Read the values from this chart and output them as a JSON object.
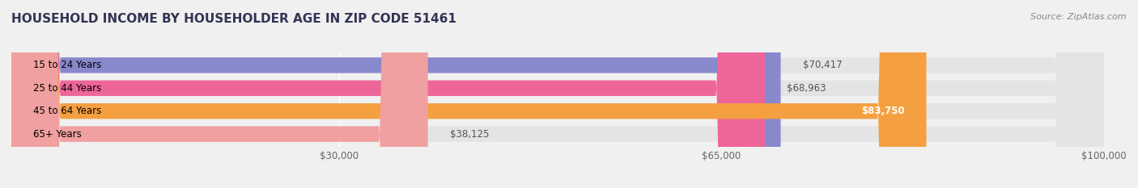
{
  "title": "HOUSEHOLD INCOME BY HOUSEHOLDER AGE IN ZIP CODE 51461",
  "source": "Source: ZipAtlas.com",
  "categories": [
    "15 to 24 Years",
    "25 to 44 Years",
    "45 to 64 Years",
    "65+ Years"
  ],
  "values": [
    70417,
    68963,
    83750,
    38125
  ],
  "bar_colors": [
    "#8888cc",
    "#ee6699",
    "#f5a040",
    "#f0a0a0"
  ],
  "value_labels": [
    "$70,417",
    "$68,963",
    "$83,750",
    "$38,125"
  ],
  "value_label_inside": [
    false,
    false,
    true,
    false
  ],
  "value_label_colors_inside": "#ffffff",
  "value_label_colors_outside": "#555555",
  "xlim": [
    0,
    100000
  ],
  "xticks": [
    30000,
    65000,
    100000
  ],
  "xtick_labels": [
    "$30,000",
    "$65,000",
    "$100,000"
  ],
  "background_color": "#f0f0f0",
  "bar_bg_color": "#e4e4e4",
  "title_fontsize": 11,
  "source_fontsize": 8,
  "label_fontsize": 8.5,
  "tick_fontsize": 8.5,
  "bar_height": 0.68,
  "rounding_size": 4500
}
